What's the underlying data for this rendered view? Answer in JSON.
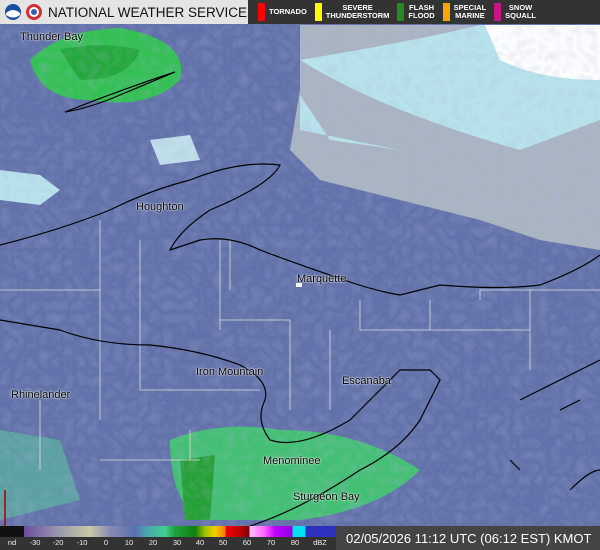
{
  "header": {
    "title": "NATIONAL WEATHER SERVICE",
    "warnings": [
      {
        "label": "TORNADO",
        "color": "#ff0000"
      },
      {
        "label": "SEVERE\nTHUNDERSTORM",
        "color": "#ffff00"
      },
      {
        "label": "FLASH\nFLOOD",
        "color": "#228b22"
      },
      {
        "label": "SPECIAL\nMARINE",
        "color": "#ffa500"
      },
      {
        "label": "SNOW\nSQUALL",
        "color": "#c71585"
      }
    ]
  },
  "cities": [
    "Thunder Bay",
    "Houghton",
    "Marquette",
    "Iron Mountain",
    "Escanaba",
    "Rhinelander",
    "Menominee",
    "Sturgeon Bay"
  ],
  "legend": {
    "ticks": [
      "nd",
      "-30",
      "-20",
      "-10",
      "0",
      "10",
      "20",
      "30",
      "40",
      "50",
      "60",
      "70",
      "80",
      "dBZ"
    ]
  },
  "timestamp": "02/05/2026 11:12 UTC (06:12 EST) KMOT"
}
